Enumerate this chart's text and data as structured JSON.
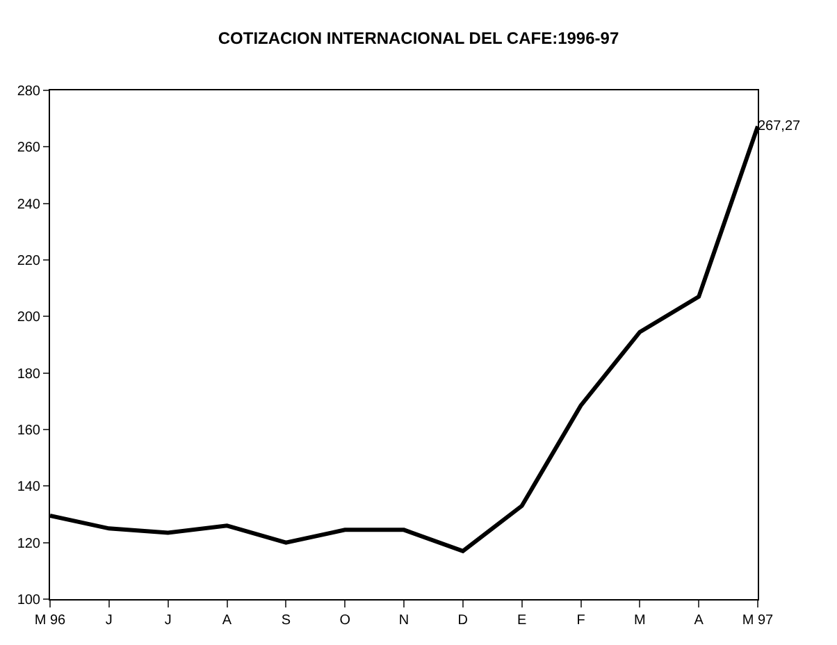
{
  "chart_data": {
    "type": "line",
    "title": "COTIZACION INTERNACIONAL DEL CAFE:1996-97",
    "categories": [
      "M 96",
      "J",
      "J",
      "A",
      "S",
      "O",
      "N",
      "D",
      "E",
      "F",
      "M",
      "A",
      "M 97"
    ],
    "series": [
      {
        "color": "#000000",
        "values": [
          129.5,
          125,
          123.5,
          126,
          120,
          124.5,
          124.5,
          117,
          133,
          168.5,
          194.5,
          207,
          267.27
        ],
        "value_labels": [
          null,
          null,
          null,
          null,
          null,
          null,
          null,
          null,
          null,
          null,
          null,
          null,
          "267,27"
        ]
      }
    ],
    "ylim": [
      100,
      280
    ],
    "yticks": [
      100,
      120,
      140,
      160,
      180,
      200,
      220,
      240,
      260,
      280
    ],
    "marker": "none",
    "line_style": "solid"
  }
}
